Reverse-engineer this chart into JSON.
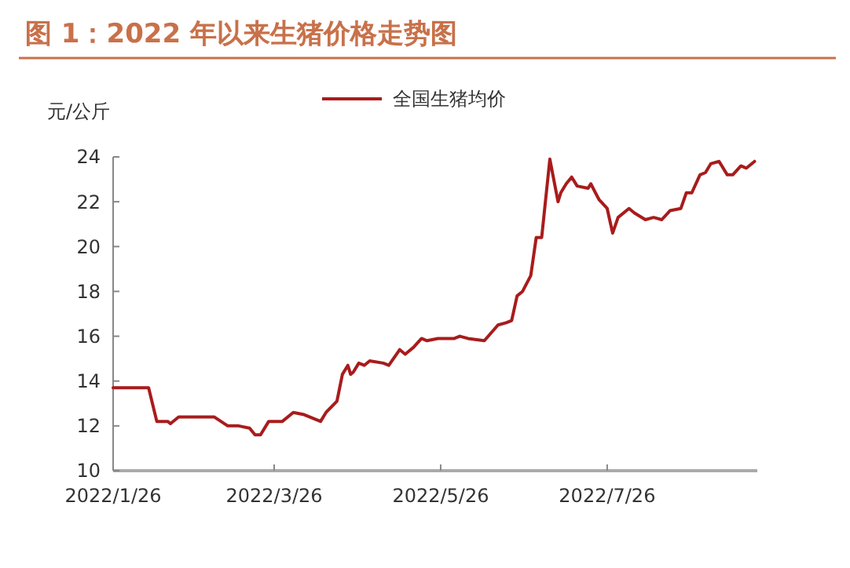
{
  "chart_data": {
    "type": "line",
    "title": "图 1：2022 年以来生猪价格走势图",
    "ylabel": "元/公斤",
    "legend": "top",
    "grid": false,
    "xlim": [
      "2022-01-26",
      "2022-09-19"
    ],
    "xticks": [
      {
        "value": "2022-01-26",
        "label": "2022/1/26"
      },
      {
        "value": "2022-03-26",
        "label": "2022/3/26"
      },
      {
        "value": "2022-05-26",
        "label": "2022/5/26"
      },
      {
        "value": "2022-07-26",
        "label": "2022/7/26"
      }
    ],
    "ylim": [
      10,
      24
    ],
    "yticks": [
      10,
      12,
      14,
      16,
      18,
      20,
      22,
      24
    ],
    "series": [
      {
        "name": "全国生猪均价",
        "color": "#a81c1c",
        "x": [
          "2022-01-26",
          "2022-02-08",
          "2022-02-11",
          "2022-02-15",
          "2022-02-16",
          "2022-02-19",
          "2022-03-04",
          "2022-03-09",
          "2022-03-13",
          "2022-03-17",
          "2022-03-19",
          "2022-03-21",
          "2022-03-24",
          "2022-03-29",
          "2022-04-02",
          "2022-04-06",
          "2022-04-12",
          "2022-04-14",
          "2022-04-18",
          "2022-04-20",
          "2022-04-22",
          "2022-04-23",
          "2022-04-24",
          "2022-04-26",
          "2022-04-28",
          "2022-04-30",
          "2022-05-05",
          "2022-05-07",
          "2022-05-11",
          "2022-05-13",
          "2022-05-16",
          "2022-05-19",
          "2022-05-21",
          "2022-05-25",
          "2022-05-31",
          "2022-06-02",
          "2022-06-05",
          "2022-06-11",
          "2022-06-16",
          "2022-06-19",
          "2022-06-21",
          "2022-06-23",
          "2022-06-25",
          "2022-06-28",
          "2022-06-30",
          "2022-07-02",
          "2022-07-05",
          "2022-07-08",
          "2022-07-09",
          "2022-07-11",
          "2022-07-13",
          "2022-07-15",
          "2022-07-19",
          "2022-07-20",
          "2022-07-23",
          "2022-07-26",
          "2022-07-28",
          "2022-07-30",
          "2022-08-03",
          "2022-08-05",
          "2022-08-09",
          "2022-08-12",
          "2022-08-15",
          "2022-08-18",
          "2022-08-22",
          "2022-08-24",
          "2022-08-26",
          "2022-08-29",
          "2022-08-31",
          "2022-09-02",
          "2022-09-05",
          "2022-09-08",
          "2022-09-10",
          "2022-09-13",
          "2022-09-15",
          "2022-09-18"
        ],
        "values": [
          13.7,
          13.7,
          12.2,
          12.2,
          12.1,
          12.4,
          12.4,
          12.0,
          12.0,
          11.9,
          11.6,
          11.6,
          12.2,
          12.2,
          12.6,
          12.5,
          12.2,
          12.6,
          13.1,
          14.3,
          14.7,
          14.3,
          14.4,
          14.8,
          14.7,
          14.9,
          14.8,
          14.7,
          15.4,
          15.2,
          15.5,
          15.9,
          15.8,
          15.9,
          15.9,
          16.0,
          15.9,
          15.8,
          16.5,
          16.6,
          16.7,
          17.8,
          18.0,
          18.7,
          20.4,
          20.4,
          23.9,
          22.0,
          22.4,
          22.8,
          23.1,
          22.7,
          22.6,
          22.8,
          22.1,
          21.7,
          20.6,
          21.3,
          21.7,
          21.5,
          21.2,
          21.3,
          21.2,
          21.6,
          21.7,
          22.4,
          22.4,
          23.2,
          23.3,
          23.7,
          23.8,
          23.2,
          23.2,
          23.6,
          23.5,
          23.8
        ]
      }
    ]
  }
}
